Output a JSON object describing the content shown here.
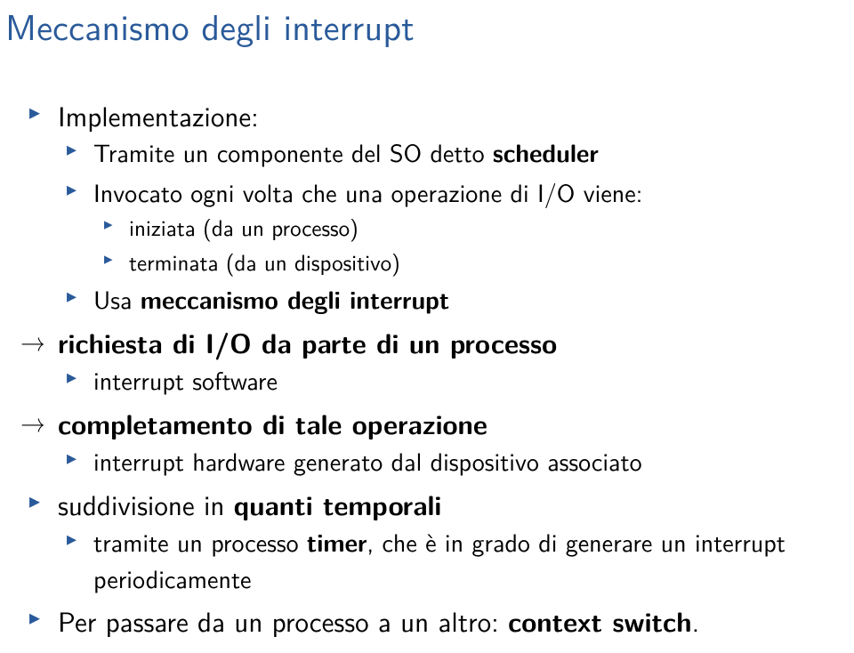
{
  "title": "Meccanismo degli interrupt",
  "items": {
    "l1": {
      "label_pre": "Implementazione:",
      "sub": {
        "scheduler_pre": "Tramite un componente del SO detto ",
        "scheduler_bold": "scheduler",
        "invocato": "Invocato ogni volta che una operazione di I/O viene:",
        "iniziata": "iniziata (da un processo)",
        "terminata": "terminata (da un dispositivo)",
        "usa_pre": "Usa ",
        "usa_bold": "meccanismo degli interrupt"
      }
    },
    "l2": {
      "richiesta_bold": "richiesta di I/O da parte di un processo",
      "interrupt_sw": "interrupt software"
    },
    "l3": {
      "completamento_bold": "completamento di tale operazione",
      "interrupt_hw": "interrupt hardware generato dal dispositivo associato"
    },
    "l4": {
      "suddivisione_pre": "suddivisione in ",
      "suddivisione_bold": "quanti temporali",
      "timer_pre": "tramite un processo ",
      "timer_bold": "timer",
      "timer_post": ", che è in grado di generare un interrupt periodicamente"
    },
    "l5": {
      "passare_pre": "Per passare da un processo a un altro: ",
      "passare_bold": "context switch",
      "passare_post": "."
    }
  },
  "colors": {
    "title": "#2a5a9a",
    "bullet": "#2a5a9a",
    "text": "#000000",
    "bg": "#ffffff"
  }
}
